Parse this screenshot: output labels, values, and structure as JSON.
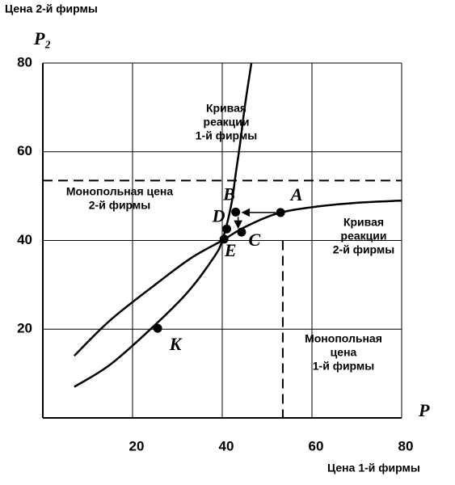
{
  "chart_data": {
    "type": "line",
    "y_title": "Цена 2-й фирмы",
    "x_title": "Цена 1-й фирмы",
    "y_label": "P₂",
    "x_label": "P",
    "xlim": [
      0,
      80
    ],
    "ylim": [
      0,
      80
    ],
    "xticks": [
      20,
      40,
      60,
      80
    ],
    "yticks": [
      20,
      40,
      60,
      80
    ],
    "grid": true,
    "series": [
      {
        "color": "#000000",
        "x": [
          7,
          15,
          24,
          32,
          38,
          40,
          42,
          43,
          44,
          45,
          46.5
        ],
        "values": [
          7,
          12,
          20,
          28,
          36,
          40,
          48,
          55,
          62,
          70,
          80
        ]
      },
      {
        "color": "#000000",
        "x": [
          7,
          15,
          25,
          33,
          40,
          45,
          52,
          60,
          70,
          80
        ],
        "values": [
          14,
          22,
          30,
          36,
          40,
          43,
          46,
          47.5,
          48.5,
          49
        ]
      }
    ],
    "monopoly_price_2": 53.5,
    "monopoly_price_1": 53.5,
    "points": [
      {
        "label": "A",
        "x": 53,
        "y": 46.3
      },
      {
        "label": "B",
        "x": 43,
        "y": 46.4
      },
      {
        "label": "C",
        "x": 44.3,
        "y": 41.9
      },
      {
        "label": "D",
        "x": 41,
        "y": 42.6
      },
      {
        "label": "E",
        "x": 40.4,
        "y": 40.3
      },
      {
        "label": "K",
        "x": 25.6,
        "y": 20.2
      }
    ],
    "annotations": [
      {
        "lines": [
          "Кривая",
          "реакции",
          "1-й фирмы"
        ]
      },
      {
        "lines": [
          "Монопольная цена",
          "2-й фирмы"
        ]
      },
      {
        "lines": [
          "Кривая",
          "реакции",
          "2-й фирмы"
        ]
      },
      {
        "lines": [
          "Монопольная",
          "цена",
          "1-й фирмы"
        ]
      }
    ]
  }
}
